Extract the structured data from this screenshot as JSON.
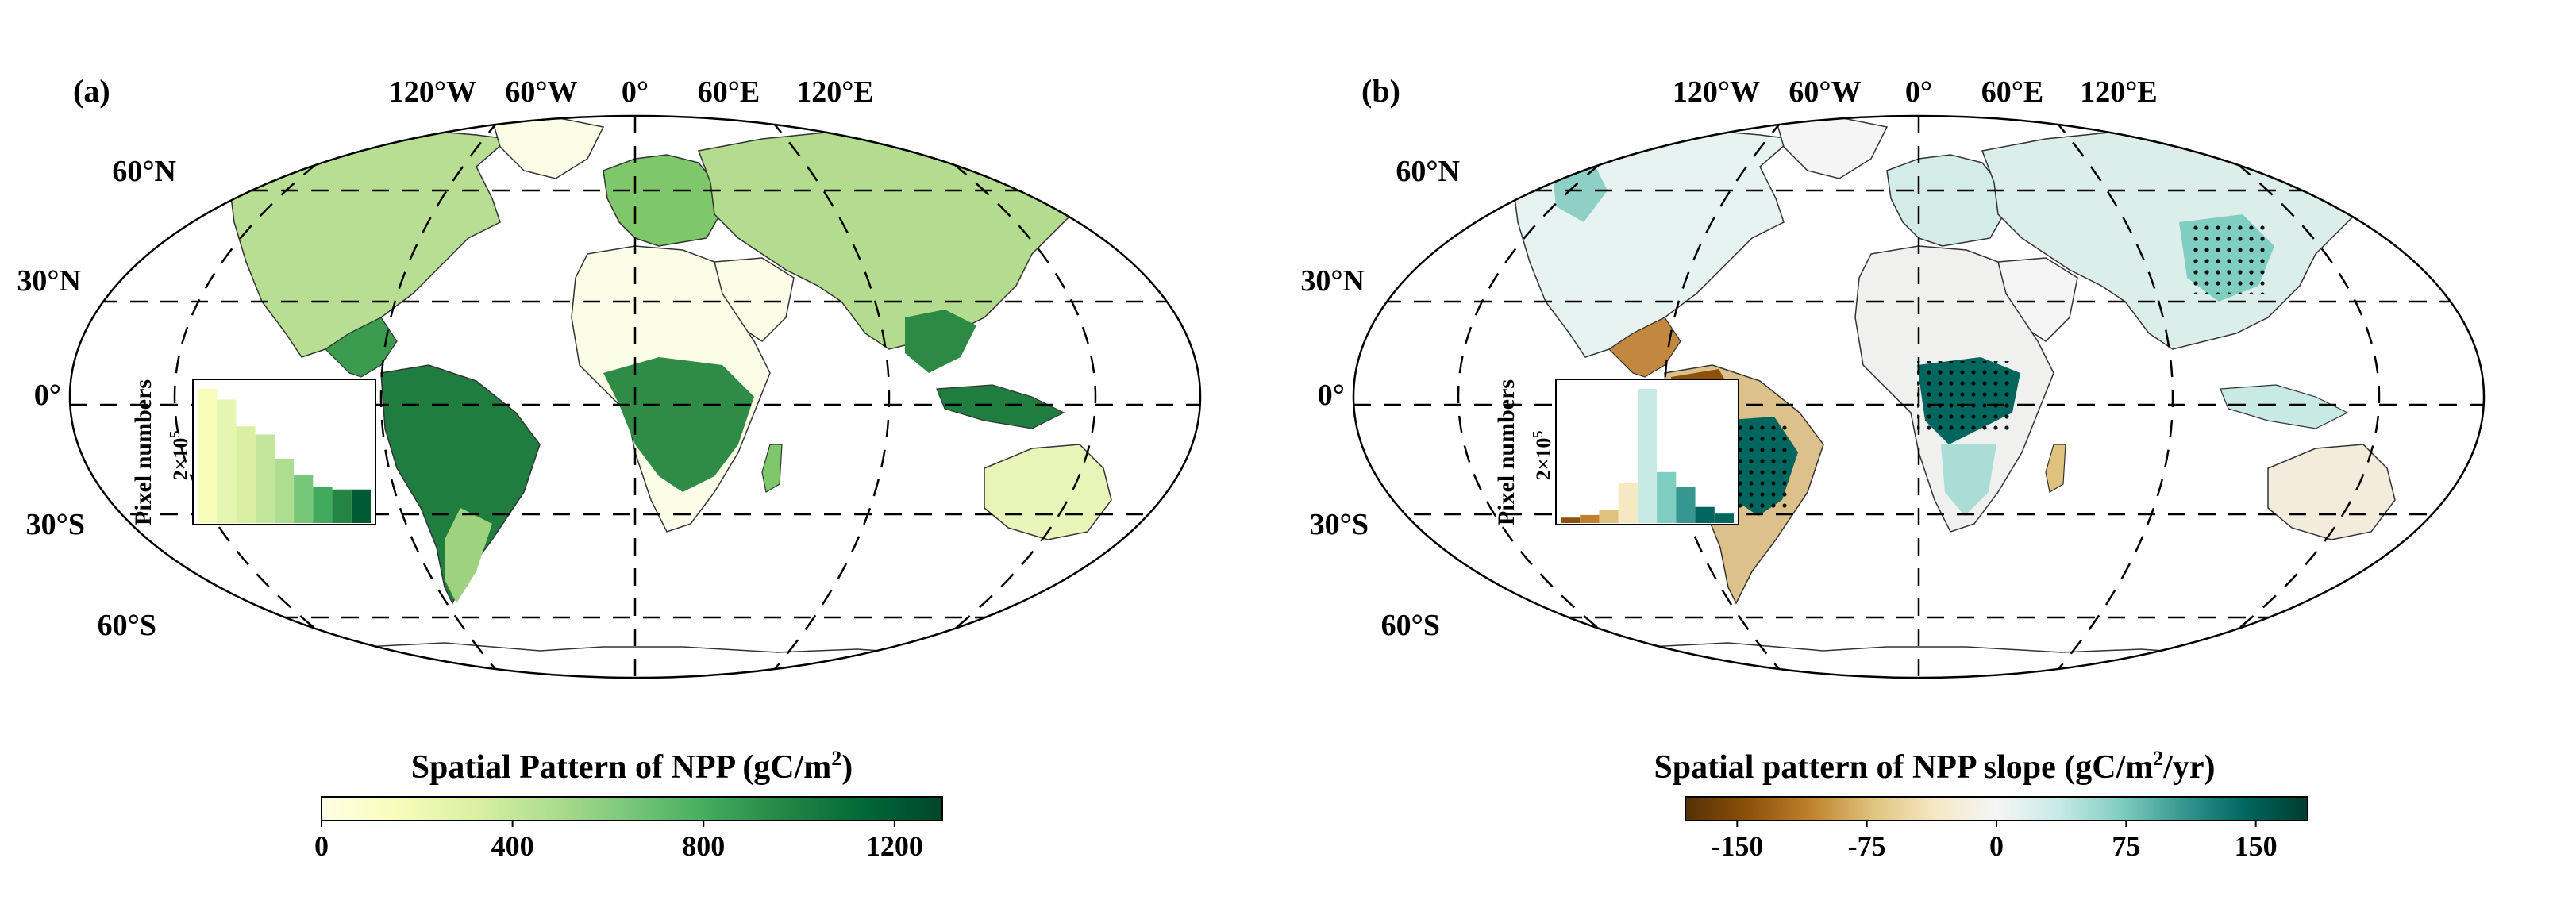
{
  "chart_data": [
    {
      "type": "choropleth map",
      "panel_label": "(a)",
      "longitude_labels": [
        "120°W",
        "60°W",
        "0°",
        "60°E",
        "120°E"
      ],
      "latitude_labels": [
        "60°N",
        "30°N",
        "0°",
        "30°S",
        "60°S"
      ],
      "colorbar": {
        "title": "Spatial Pattern of NPP (gC/m",
        "title_sup": "2",
        "title_end": ")",
        "ticks": [
          "0",
          "400",
          "800",
          "1200"
        ],
        "tick_values": [
          0,
          400,
          800,
          1200
        ],
        "range": [
          0,
          1300
        ],
        "colors": [
          "#ffffe5",
          "#f7fcb9",
          "#d9f0a3",
          "#addd8e",
          "#78c679",
          "#41ab5d",
          "#238443",
          "#006837",
          "#004529"
        ]
      },
      "inset_histogram": {
        "ylabel": "Pixel numbers",
        "ytick_base": "2×10",
        "ytick_exp": "5",
        "bar_heights_relative": [
          1.0,
          0.92,
          0.72,
          0.66,
          0.48,
          0.36,
          0.27,
          0.25,
          0.25
        ],
        "bar_colors": [
          "#f7fcb9",
          "#e6f5b0",
          "#d9f0a3",
          "#c2e699",
          "#addd8e",
          "#78c679",
          "#41ab5d",
          "#238443",
          "#005a32"
        ]
      }
    },
    {
      "type": "choropleth map",
      "panel_label": "(b)",
      "longitude_labels": [
        "120°W",
        "60°W",
        "0°",
        "60°E",
        "120°E"
      ],
      "latitude_labels": [
        "60°N",
        "30°N",
        "0°",
        "30°S",
        "60°S"
      ],
      "significance_marker": "black dots",
      "colorbar": {
        "title": "Spatial pattern of NPP slope (gC/m",
        "title_sup": "2",
        "title_end": "/yr)",
        "ticks": [
          "-150",
          "-75",
          "0",
          "75",
          "150"
        ],
        "tick_values": [
          -150,
          -75,
          0,
          75,
          150
        ],
        "range": [
          -180,
          180
        ],
        "colors": [
          "#543005",
          "#8c510a",
          "#bf812d",
          "#dfc27d",
          "#f6e8c3",
          "#f5f5f5",
          "#c7eae5",
          "#80cdc1",
          "#35978f",
          "#01665e",
          "#003c30"
        ]
      },
      "inset_histogram": {
        "ylabel": "Pixel numbers",
        "ytick_base": "2×10",
        "ytick_exp": "5",
        "bar_heights_relative": [
          0.04,
          0.06,
          0.1,
          0.3,
          1.0,
          0.38,
          0.27,
          0.12,
          0.07
        ],
        "bar_colors": [
          "#8c510a",
          "#bf812d",
          "#dfc27d",
          "#f6e8c3",
          "#c7eae5",
          "#80cdc1",
          "#35978f",
          "#01665e",
          "#01665e"
        ]
      }
    }
  ]
}
